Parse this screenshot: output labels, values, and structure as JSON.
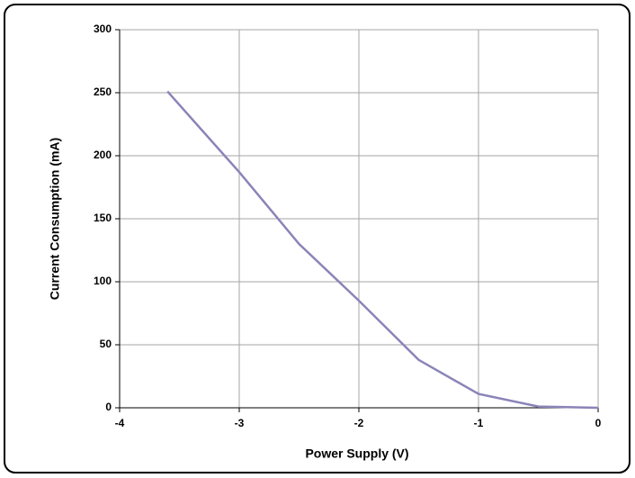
{
  "chart_data": {
    "type": "line",
    "x_label": "Power Supply (V)",
    "y_label": "Current Consumption (mA)",
    "x": [
      -3.6,
      -3,
      -2.5,
      -2,
      -1.5,
      -1,
      -0.5,
      0
    ],
    "series": [
      {
        "color": "#8a84b8",
        "values": [
          251,
          187,
          130,
          85,
          38,
          11,
          1,
          0
        ]
      }
    ],
    "xlim": [
      -4,
      0
    ],
    "xticks": [
      -4,
      -3,
      -2,
      -1,
      0
    ],
    "ylim": [
      0,
      300
    ],
    "yticks": [
      0,
      50,
      100,
      150,
      200,
      250,
      300
    ],
    "grid": true
  }
}
